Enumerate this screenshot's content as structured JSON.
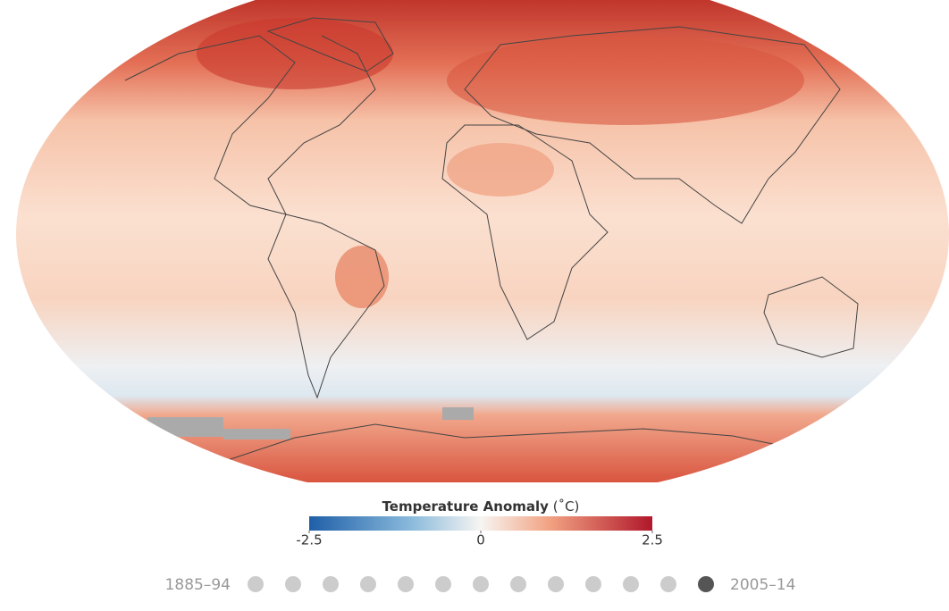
{
  "legend": {
    "title": "Temperature Anomaly",
    "unit": "(˚C)",
    "range": [
      -2.5,
      2.5
    ],
    "ticks": [
      -2.5,
      0,
      2.5
    ]
  },
  "timeline": {
    "start_label": "1885–94",
    "end_label": "2005–14",
    "steps": 13,
    "selected": 12
  }
}
